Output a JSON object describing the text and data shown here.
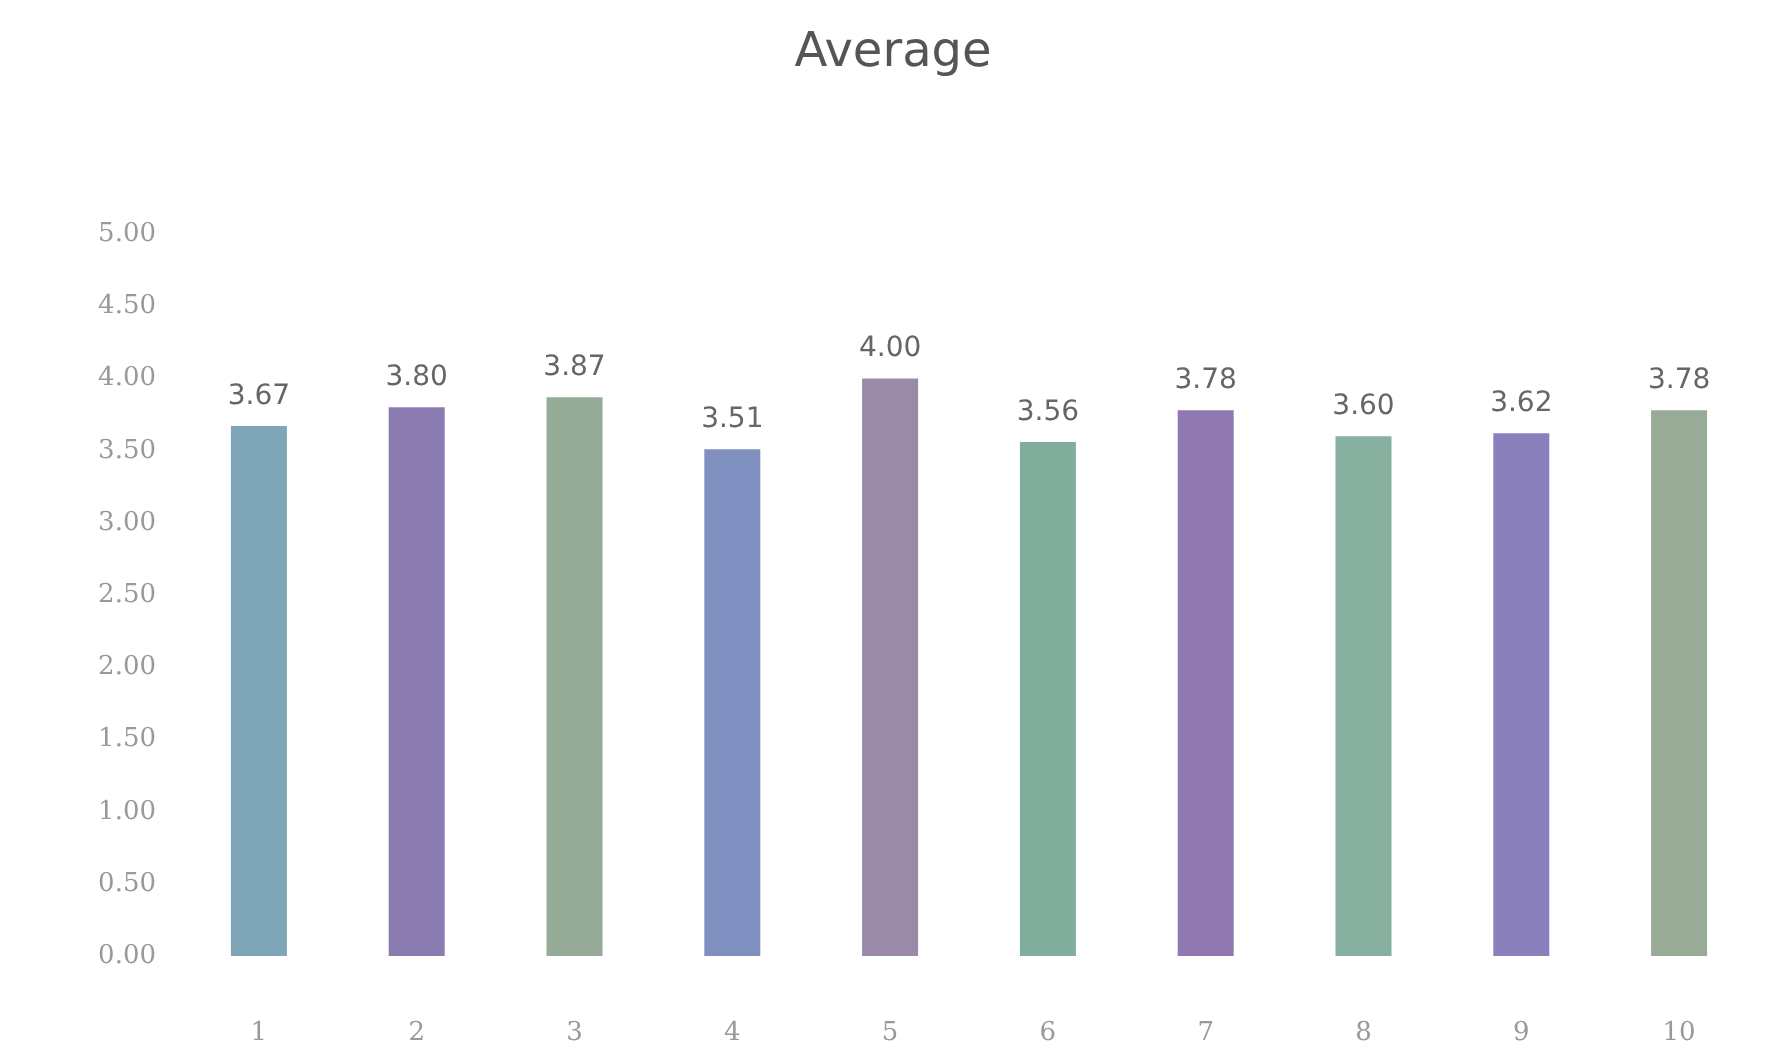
{
  "chart_data": {
    "type": "bar",
    "title": "Average",
    "categories": [
      "1",
      "2",
      "3",
      "4",
      "5",
      "6",
      "7",
      "8",
      "9",
      "10"
    ],
    "values": [
      3.67,
      3.8,
      3.87,
      3.51,
      4.0,
      3.56,
      3.78,
      3.6,
      3.62,
      3.78
    ],
    "colors": [
      "#7fa6b8",
      "#8a7cb0",
      "#96aa98",
      "#7f8fc0",
      "#9a8aa8",
      "#7fae9c",
      "#9078b0",
      "#88b0a0",
      "#8a80bc",
      "#98ab96"
    ],
    "value_labels": [
      "3.67",
      "3.80",
      "3.87",
      "3.51",
      "4.00",
      "3.56",
      "3.78",
      "3.60",
      "3.62",
      "3.78"
    ],
    "ylim": [
      0,
      5
    ],
    "yticks": [
      {
        "value": 0,
        "label": "0.00"
      },
      {
        "value": 0.5,
        "label": "0.50"
      },
      {
        "value": 1,
        "label": "1.00"
      },
      {
        "value": 1.5,
        "label": "1.50"
      },
      {
        "value": 2,
        "label": "2.00"
      },
      {
        "value": 2.5,
        "label": "2.50"
      },
      {
        "value": 3,
        "label": "3.00"
      },
      {
        "value": 3.5,
        "label": "3.50"
      },
      {
        "value": 4,
        "label": "4.00"
      },
      {
        "value": 4.5,
        "label": "4.50"
      },
      {
        "value": 5,
        "label": "5.00"
      }
    ],
    "grid": false
  }
}
